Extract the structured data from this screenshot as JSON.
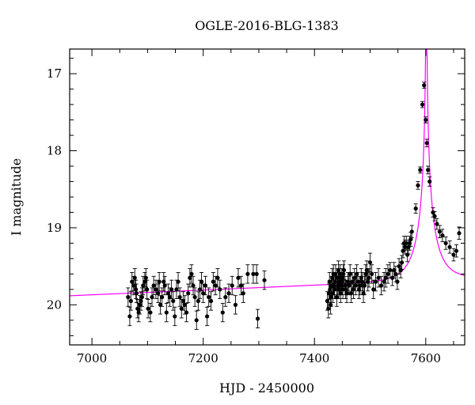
{
  "chart_data": {
    "type": "scatter",
    "title": "OGLE-2016-BLG-1383",
    "xlabel": "HJD - 2450000",
    "ylabel": "I magnitude",
    "xlim": [
      6960,
      7670
    ],
    "ylim": [
      20.52,
      16.68
    ],
    "y_inverted": true,
    "x_major_ticks": [
      7000,
      7200,
      7400,
      7600
    ],
    "y_major_ticks": [
      17,
      18,
      19,
      20
    ],
    "x_minor_step": 50,
    "y_minor_step": 0.2,
    "grid": false,
    "legend": "none",
    "colors": {
      "data": "#000000",
      "model": "#ff00ff"
    },
    "model": {
      "name": "",
      "t0": 7601,
      "tE": 38,
      "u0": 0.0038,
      "baseline_mag": 19.87,
      "blend_fraction": 0.53,
      "baseline_slope_per_day": -0.00031
    },
    "series": [
      {
        "name": "",
        "x": [
          7065,
          7068,
          7070,
          7072,
          7075,
          7077,
          7079,
          7080,
          7082,
          7084,
          7086,
          7088,
          7090,
          7092,
          7095,
          7097,
          7099,
          7101,
          7105,
          7108,
          7111,
          7115,
          7119,
          7121,
          7123,
          7126,
          7129,
          7131,
          7134,
          7137,
          7140,
          7143,
          7146,
          7149,
          7152,
          7155,
          7158,
          7161,
          7164,
          7167,
          7170,
          7173,
          7176,
          7179,
          7182,
          7185,
          7188,
          7191,
          7194,
          7197,
          7200,
          7204,
          7207,
          7210,
          7214,
          7218,
          7222,
          7226,
          7230,
          7235,
          7240,
          7246,
          7252,
          7258,
          7263,
          7268,
          7272,
          7280,
          7290,
          7296,
          7298,
          7310,
          7423,
          7425,
          7426,
          7427,
          7428,
          7429,
          7430,
          7431,
          7432,
          7433,
          7434,
          7435,
          7436,
          7437,
          7438,
          7440,
          7441,
          7442,
          7443,
          7444,
          7445,
          7446,
          7447,
          7448,
          7449,
          7450,
          7451,
          7452,
          7453,
          7455,
          7456,
          7458,
          7460,
          7462,
          7464,
          7466,
          7468,
          7470,
          7472,
          7474,
          7476,
          7478,
          7480,
          7482,
          7484,
          7486,
          7488,
          7490,
          7492,
          7494,
          7496,
          7498,
          7500,
          7503,
          7506,
          7510,
          7515,
          7520,
          7525,
          7528,
          7532,
          7536,
          7540,
          7543,
          7546,
          7549,
          7552,
          7555,
          7557,
          7559,
          7561,
          7563,
          7565,
          7567,
          7569,
          7571,
          7573,
          7575,
          7582,
          7586,
          7590,
          7594,
          7597,
          7600,
          7602,
          7604,
          7607,
          7613,
          7616,
          7620,
          7625,
          7630,
          7636,
          7643,
          7650,
          7655,
          7660
        ],
        "y": [
          19.9,
          20.15,
          19.95,
          19.7,
          19.75,
          19.65,
          19.8,
          19.85,
          20.05,
          20.1,
          20.0,
          19.95,
          19.9,
          19.75,
          19.7,
          19.65,
          19.8,
          20.05,
          20.1,
          19.9,
          19.75,
          19.8,
          19.85,
          19.7,
          20.0,
          19.9,
          19.7,
          19.75,
          20.1,
          19.85,
          19.9,
          19.8,
          19.95,
          20.15,
          19.8,
          19.7,
          19.9,
          20.05,
          19.95,
          20.0,
          20.1,
          19.85,
          19.65,
          19.6,
          19.75,
          19.9,
          20.2,
          19.95,
          19.8,
          19.7,
          19.85,
          19.75,
          20.15,
          19.9,
          19.95,
          19.7,
          19.75,
          19.65,
          19.8,
          20.1,
          19.9,
          19.85,
          19.75,
          20.0,
          19.65,
          19.75,
          19.85,
          19.6,
          19.6,
          19.6,
          20.18,
          19.68,
          19.95,
          20.05,
          19.85,
          19.7,
          19.8,
          20.0,
          19.9,
          19.75,
          19.65,
          19.85,
          19.6,
          19.75,
          19.8,
          19.7,
          19.6,
          19.9,
          19.65,
          19.75,
          19.55,
          19.8,
          19.7,
          19.6,
          19.85,
          19.75,
          19.65,
          19.7,
          19.8,
          19.6,
          19.55,
          19.75,
          19.8,
          19.85,
          19.7,
          19.75,
          19.6,
          19.85,
          19.7,
          19.8,
          19.65,
          19.75,
          19.6,
          19.7,
          19.8,
          19.75,
          19.65,
          19.7,
          19.85,
          19.75,
          19.6,
          19.55,
          19.7,
          19.65,
          19.45,
          19.6,
          19.8,
          19.7,
          19.65,
          19.75,
          19.7,
          19.65,
          19.6,
          19.55,
          19.65,
          19.55,
          19.6,
          19.7,
          19.5,
          19.55,
          19.45,
          19.3,
          19.2,
          19.25,
          19.2,
          19.35,
          19.25,
          19.2,
          19.15,
          19.05,
          18.75,
          18.45,
          18.25,
          17.4,
          17.15,
          17.6,
          17.9,
          18.25,
          18.4,
          18.8,
          18.85,
          18.95,
          19.05,
          19.1,
          19.2,
          19.25,
          19.35,
          19.3,
          19.07
        ],
        "yerr": [
          0.12,
          0.12,
          0.12,
          0.12,
          0.12,
          0.12,
          0.12,
          0.12,
          0.12,
          0.12,
          0.12,
          0.12,
          0.12,
          0.12,
          0.12,
          0.12,
          0.12,
          0.12,
          0.12,
          0.12,
          0.12,
          0.12,
          0.12,
          0.12,
          0.12,
          0.12,
          0.12,
          0.12,
          0.12,
          0.12,
          0.12,
          0.12,
          0.12,
          0.12,
          0.12,
          0.12,
          0.12,
          0.12,
          0.12,
          0.12,
          0.12,
          0.12,
          0.12,
          0.12,
          0.12,
          0.12,
          0.12,
          0.12,
          0.12,
          0.12,
          0.12,
          0.12,
          0.12,
          0.12,
          0.12,
          0.12,
          0.12,
          0.12,
          0.12,
          0.12,
          0.12,
          0.12,
          0.12,
          0.12,
          0.12,
          0.12,
          0.12,
          0.12,
          0.12,
          0.12,
          0.12,
          0.12,
          0.12,
          0.12,
          0.12,
          0.12,
          0.12,
          0.12,
          0.12,
          0.12,
          0.12,
          0.12,
          0.12,
          0.12,
          0.12,
          0.12,
          0.12,
          0.12,
          0.12,
          0.12,
          0.12,
          0.12,
          0.12,
          0.12,
          0.12,
          0.12,
          0.12,
          0.12,
          0.12,
          0.12,
          0.12,
          0.12,
          0.12,
          0.12,
          0.12,
          0.12,
          0.12,
          0.12,
          0.12,
          0.12,
          0.12,
          0.12,
          0.12,
          0.12,
          0.12,
          0.12,
          0.12,
          0.12,
          0.12,
          0.12,
          0.12,
          0.12,
          0.12,
          0.12,
          0.12,
          0.12,
          0.12,
          0.12,
          0.12,
          0.12,
          0.12,
          0.12,
          0.12,
          0.1,
          0.1,
          0.1,
          0.1,
          0.1,
          0.1,
          0.1,
          0.09,
          0.09,
          0.09,
          0.09,
          0.09,
          0.09,
          0.09,
          0.09,
          0.09,
          0.08,
          0.06,
          0.05,
          0.04,
          0.04,
          0.04,
          0.04,
          0.05,
          0.05,
          0.06,
          0.06,
          0.06,
          0.07,
          0.08,
          0.08,
          0.08,
          0.08,
          0.08,
          0.08,
          0.08
        ]
      }
    ]
  }
}
